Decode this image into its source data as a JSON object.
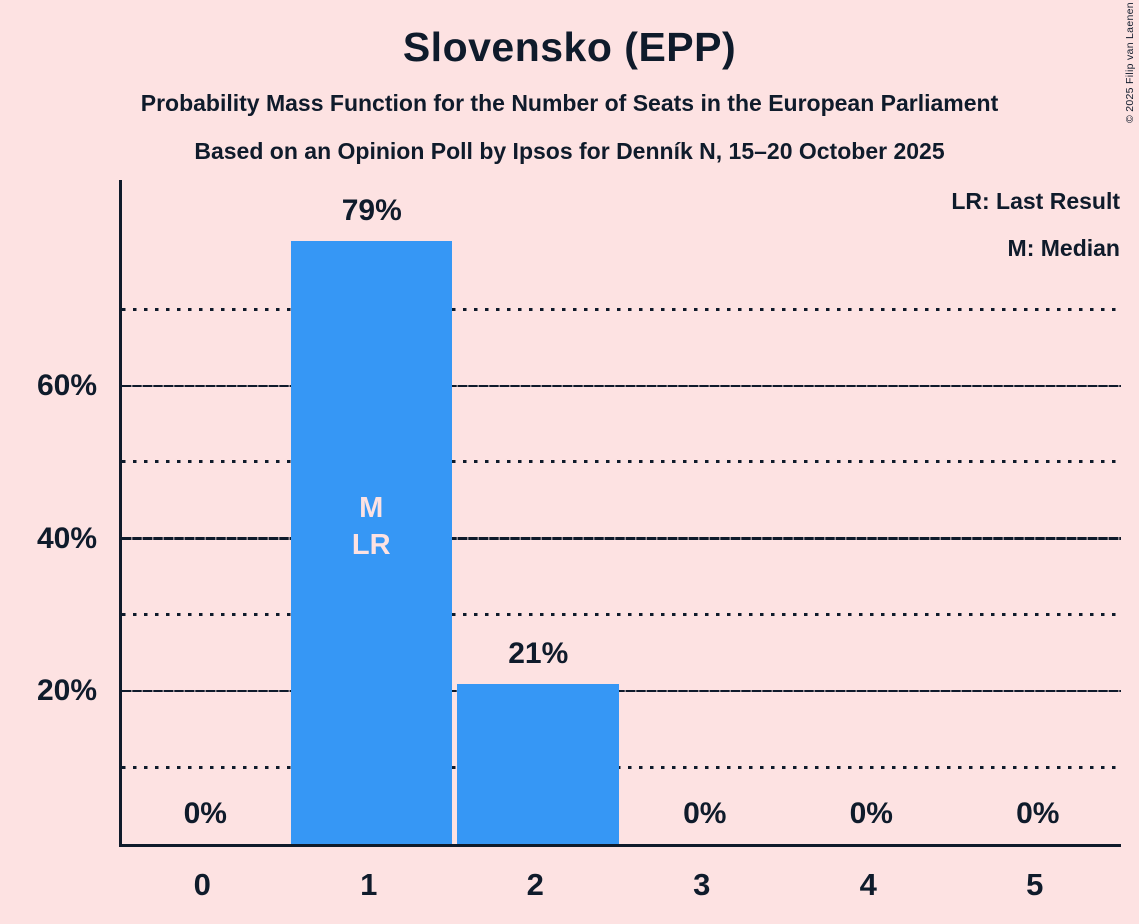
{
  "header": {
    "title": "Slovensko (EPP)",
    "subtitle1": "Probability Mass Function for the Number of Seats in the European Parliament",
    "subtitle2": "Based on an Opinion Poll by Ipsos for Denník N, 15–20 October 2025"
  },
  "copyright": "© 2025 Filip van Laenen",
  "legend": {
    "lr_label": "LR: Last Result",
    "m_label": "M: Median"
  },
  "colors": {
    "background": "#FDE2E2",
    "bar": "#3697F5",
    "text": "#0F1B2B",
    "bar_inner_label": "#FDE2E2"
  },
  "chart_data": {
    "type": "bar",
    "title": "Slovensko (EPP)",
    "categories": [
      "0",
      "1",
      "2",
      "3",
      "4",
      "5"
    ],
    "values": [
      0,
      79,
      21,
      0,
      0,
      0
    ],
    "value_labels": [
      "0%",
      "79%",
      "21%",
      "0%",
      "0%",
      "0%"
    ],
    "median_category": "1",
    "last_result_category": "1",
    "marker_labels": [
      "M",
      "LR"
    ],
    "y_ticks": [
      {
        "pct": 20,
        "label": "20%"
      },
      {
        "pct": 40,
        "label": "40%"
      },
      {
        "pct": 60,
        "label": "60%"
      }
    ],
    "gridlines": [
      {
        "pct": 10,
        "style": "dotted"
      },
      {
        "pct": 20,
        "style": "solid"
      },
      {
        "pct": 30,
        "style": "dotted"
      },
      {
        "pct": 40,
        "style": "solid"
      },
      {
        "pct": 50,
        "style": "dotted"
      },
      {
        "pct": 60,
        "style": "solid"
      },
      {
        "pct": 70,
        "style": "dotted"
      }
    ],
    "ylim": [
      0,
      87
    ],
    "grid": "horizontal",
    "legend_position": "top-right"
  }
}
